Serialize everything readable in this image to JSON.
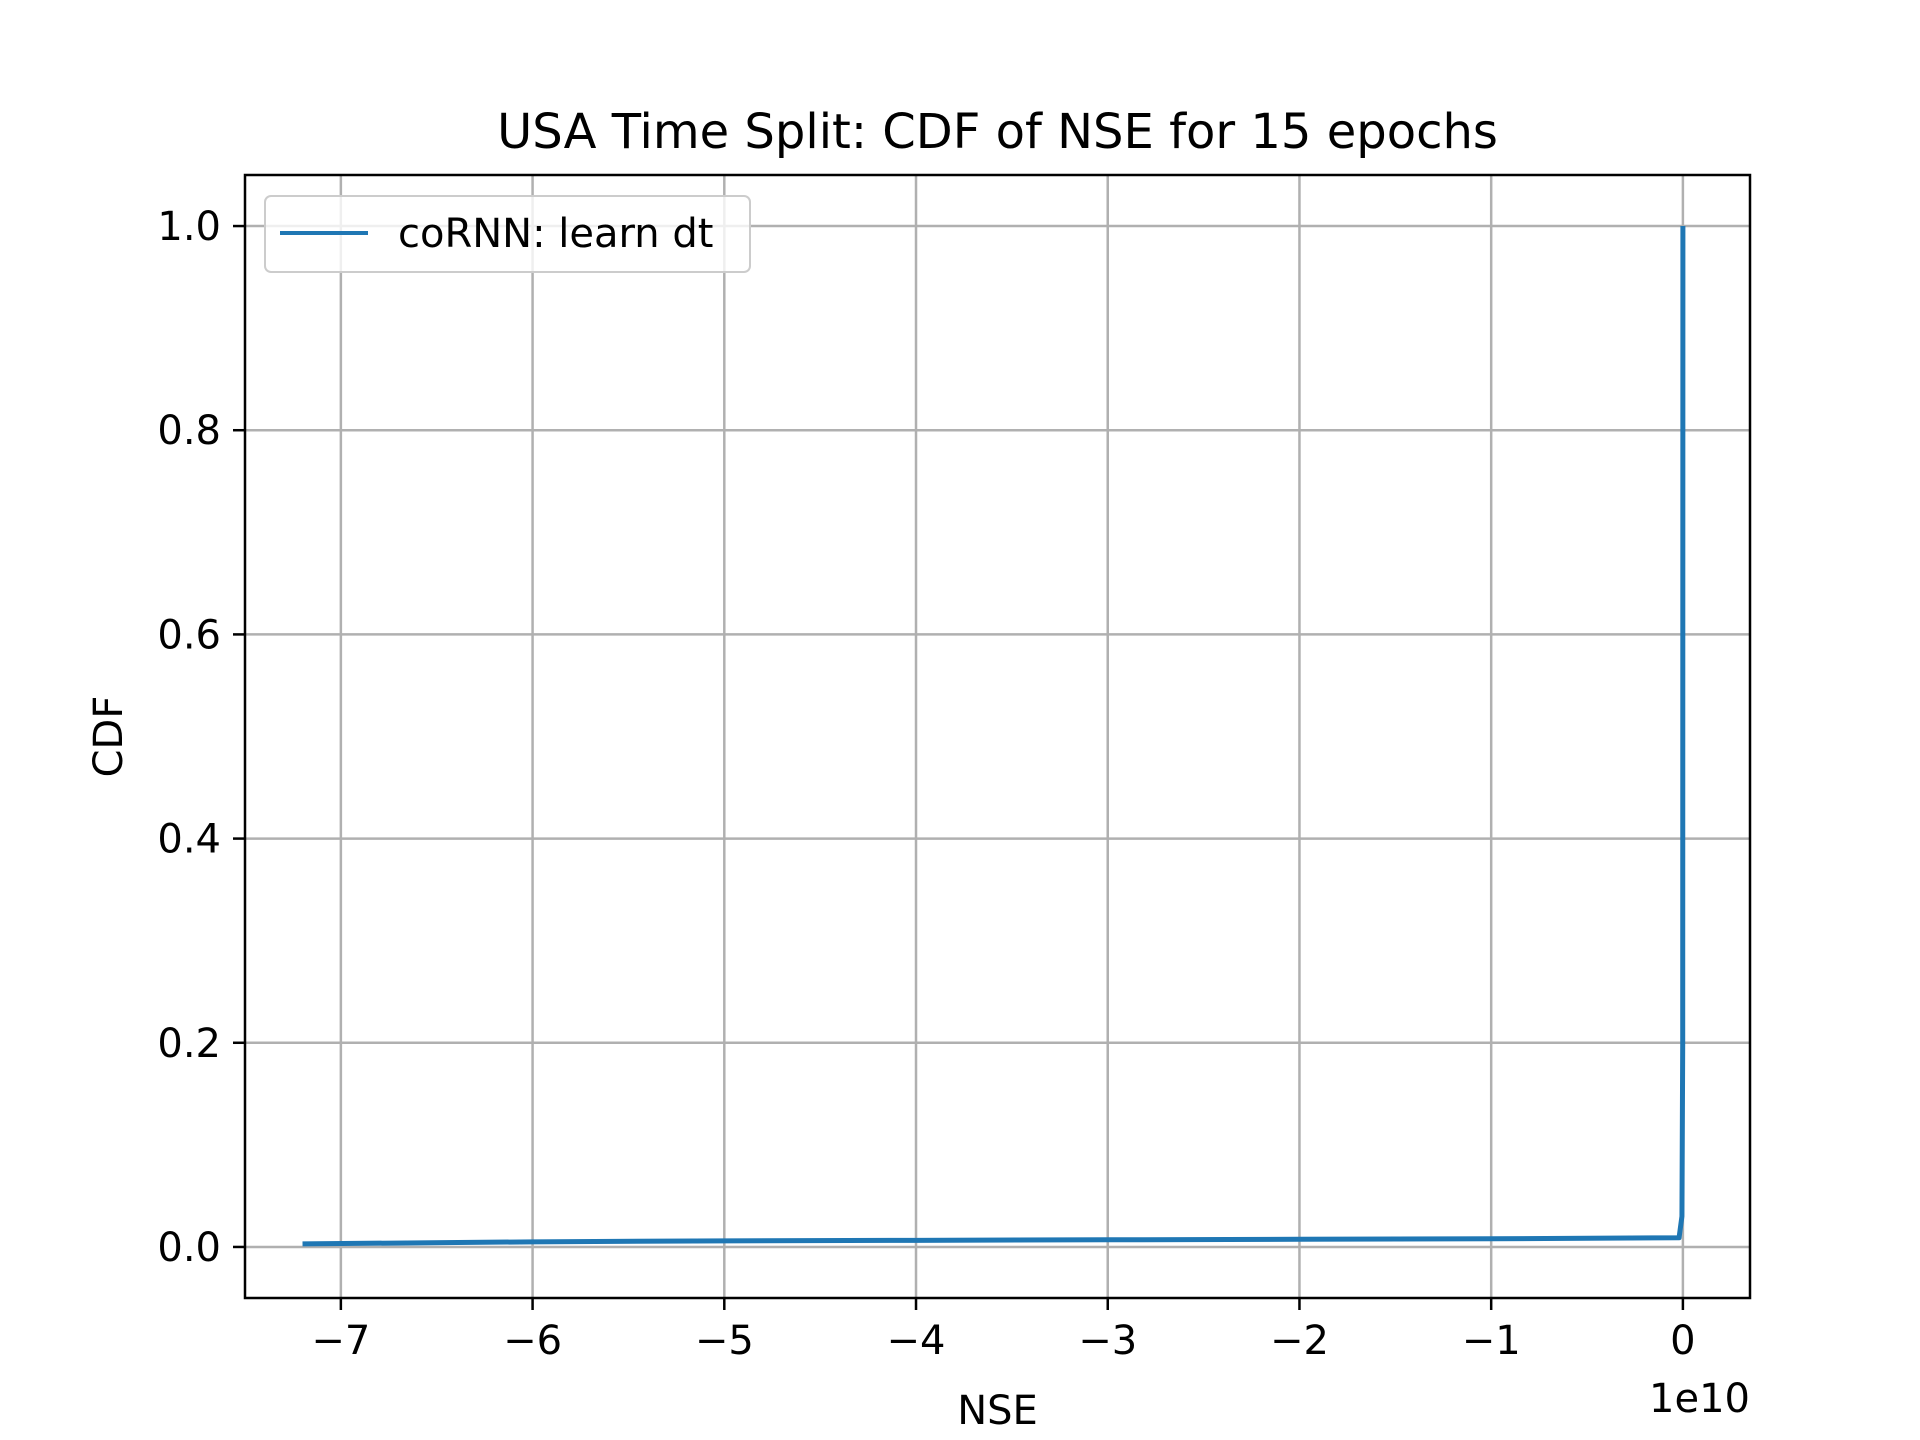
{
  "chart_data": {
    "type": "line",
    "title": "USA Time Split: CDF of NSE for 15 epochs",
    "xlabel": "NSE",
    "ylabel": "CDF",
    "x_offset_label": "1e10",
    "xlim": [
      -7.5,
      0.35
    ],
    "ylim": [
      -0.05,
      1.05
    ],
    "x_ticks": [
      -7,
      -6,
      -5,
      -4,
      -3,
      -2,
      -1,
      0
    ],
    "x_tick_labels": [
      "−7",
      "−6",
      "−5",
      "−4",
      "−3",
      "−2",
      "−1",
      "0"
    ],
    "y_ticks": [
      0.0,
      0.2,
      0.4,
      0.6,
      0.8,
      1.0
    ],
    "y_tick_labels": [
      "0.0",
      "0.2",
      "0.4",
      "0.6",
      "0.8",
      "1.0"
    ],
    "grid": true,
    "legend_position": "upper-left",
    "series": [
      {
        "name": "coRNN: learn dt",
        "color": "#1f77b4",
        "x": [
          -7.2,
          -6.0,
          -5.0,
          -4.0,
          -3.0,
          -2.0,
          -1.0,
          -0.02,
          -0.005,
          -0.001,
          0.0
        ],
        "y": [
          0.003,
          0.005,
          0.006,
          0.0065,
          0.007,
          0.0075,
          0.008,
          0.009,
          0.03,
          0.2,
          1.0
        ]
      }
    ]
  }
}
